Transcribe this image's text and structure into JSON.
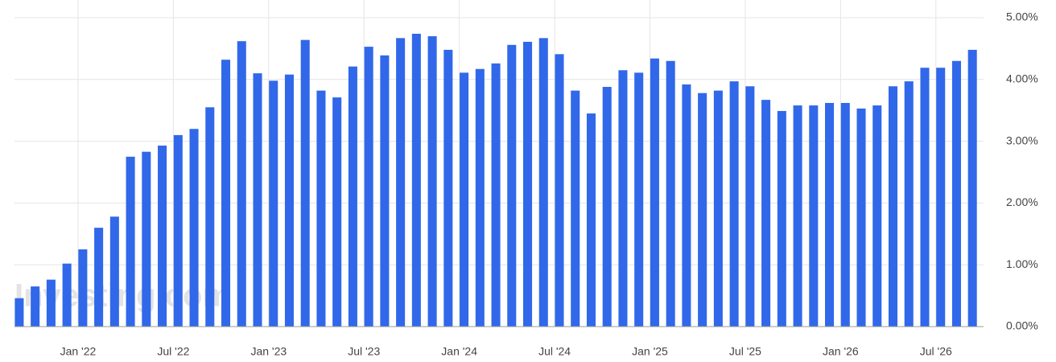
{
  "chart_data": {
    "type": "bar",
    "watermark": "Investing.com",
    "categories": [
      "",
      "",
      "",
      "",
      "Jan '22",
      "",
      "",
      "",
      "",
      "",
      "Jul '22",
      "",
      "",
      "",
      "",
      "",
      "Jan '23",
      "",
      "",
      "",
      "",
      "",
      "Jul '23",
      "",
      "",
      "",
      "",
      "",
      "Jan '24",
      "",
      "",
      "",
      "",
      "",
      "Jul '24",
      "",
      "",
      "",
      "",
      "",
      "Jan '25",
      "",
      "",
      "",
      "",
      "",
      "Jul '25",
      "",
      "",
      "",
      "",
      "",
      "Jan '26",
      "",
      "",
      "",
      "",
      "",
      "Jul '26",
      "",
      ""
    ],
    "values": [
      0.46,
      0.65,
      0.76,
      1.02,
      1.25,
      1.6,
      1.78,
      2.75,
      2.83,
      2.93,
      3.1,
      3.2,
      3.55,
      4.32,
      4.62,
      4.1,
      3.98,
      4.08,
      4.64,
      3.82,
      3.71,
      4.21,
      4.53,
      4.39,
      4.67,
      4.74,
      4.7,
      4.48,
      4.11,
      4.17,
      4.26,
      4.56,
      4.61,
      4.67,
      4.41,
      3.82,
      3.45,
      3.88,
      4.15,
      4.11,
      4.34,
      4.3,
      3.92,
      3.78,
      3.82,
      3.97,
      3.89,
      3.67,
      3.49,
      3.58,
      3.58,
      3.62,
      3.62,
      3.53,
      3.58,
      3.89,
      3.97,
      4.19,
      4.19,
      4.3,
      4.48
    ],
    "color": "#3168ea",
    "ylim": [
      0,
      5
    ],
    "yticks": [
      {
        "value": 0,
        "label": "0.00%"
      },
      {
        "value": 1,
        "label": "1.00%"
      },
      {
        "value": 2,
        "label": "2.00%"
      },
      {
        "value": 3,
        "label": "3.00%"
      },
      {
        "value": 4,
        "label": "4.00%"
      },
      {
        "value": 5,
        "label": "5.00%"
      }
    ],
    "grid": true
  }
}
